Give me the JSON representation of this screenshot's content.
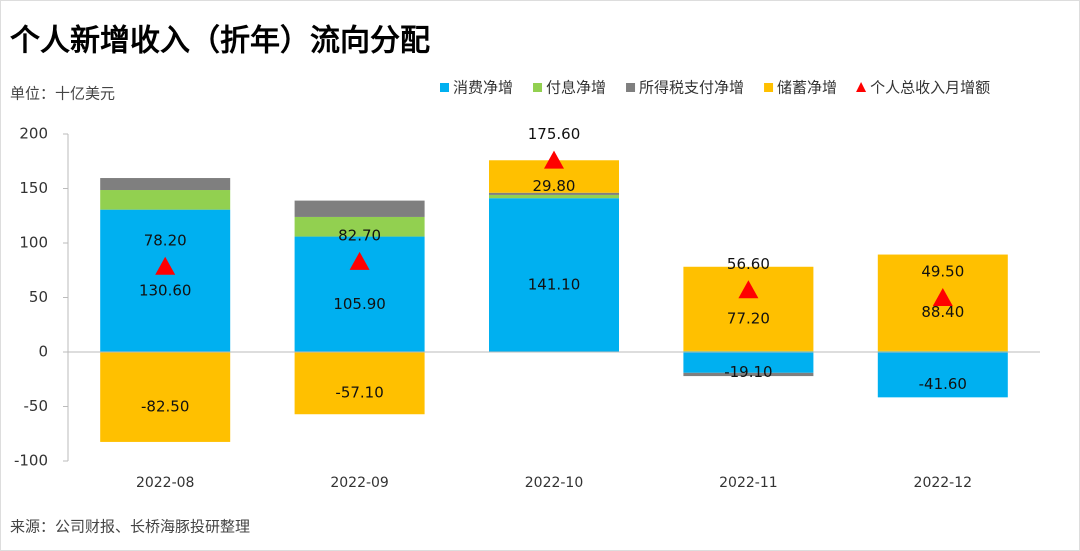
{
  "chart_data": {
    "type": "bar",
    "stacked": true,
    "title": "个人新增收入（折年）流向分配",
    "unit_label": "单位：十亿美元",
    "source": "来源：公司财报、长桥海豚投研整理",
    "categories": [
      "2022-08",
      "2022-09",
      "2022-10",
      "2022-11",
      "2022-12"
    ],
    "ylim": [
      -100,
      200
    ],
    "yticks": [
      -100,
      -50,
      0,
      50,
      100,
      150,
      200
    ],
    "series": [
      {
        "name": "消费净增",
        "color": "#00b0f0",
        "values": [
          130.6,
          105.9,
          141.1,
          -19.1,
          -41.6
        ],
        "value_labels": [
          "130.60",
          "105.90",
          "141.10",
          "-19.10",
          "-41.60"
        ]
      },
      {
        "name": "付息净增",
        "color": "#92d050",
        "values": [
          18,
          18,
          3,
          1,
          1
        ]
      },
      {
        "name": "所得税支付净增",
        "color": "#7f7f7f",
        "values": [
          11,
          15,
          2,
          -3,
          0
        ]
      },
      {
        "name": "储蓄净增",
        "color": "#ffc000",
        "values": [
          -82.5,
          -57.1,
          29.8,
          77.2,
          88.4
        ],
        "value_labels": [
          "-82.50",
          "-57.10",
          "29.80",
          "77.20",
          "88.40"
        ]
      },
      {
        "name": "个人总收入月增额",
        "color": "#ff0000",
        "type": "scatter",
        "marker": "triangle",
        "values": [
          78.2,
          82.7,
          175.6,
          56.6,
          49.5
        ],
        "value_labels": [
          "78.20",
          "82.70",
          "175.60",
          "56.60",
          "49.50"
        ]
      }
    ]
  }
}
